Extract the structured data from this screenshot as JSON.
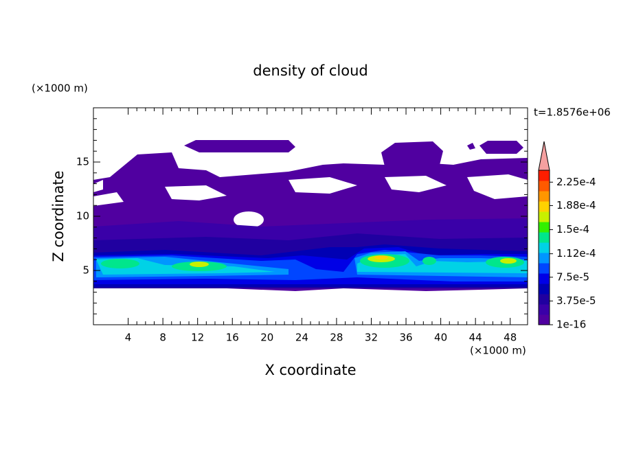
{
  "chart_data": {
    "type": "contour",
    "title": "density of cloud",
    "xlabel": "X coordinate",
    "ylabel": "Z coordinate",
    "xunit": "(×1000 m)",
    "yunit": "(×1000 m)",
    "time_label": "t=1.8576e+06",
    "xlim": [
      0,
      50
    ],
    "ylim": [
      0,
      20
    ],
    "xticks": [
      4,
      8,
      12,
      16,
      20,
      24,
      28,
      32,
      36,
      40,
      44,
      48
    ],
    "yticks": [
      5,
      10,
      15
    ],
    "colorbar": {
      "clim": [
        0,
        0.00024375
      ],
      "colors": [
        "#5000a0",
        "#3a00a8",
        "#2000a0",
        "#0000b4",
        "#0000e6",
        "#0046ff",
        "#0096ff",
        "#00d2e6",
        "#00e68c",
        "#32f000",
        "#c8f000",
        "#ffd200",
        "#ff9600",
        "#ff5a00",
        "#ff1e00"
      ],
      "extend_color": "#f5a0a0",
      "ticks": [
        {
          "value": 1e-16,
          "label": "1e-16"
        },
        {
          "value": 3.75e-05,
          "label": "3.75e-5"
        },
        {
          "value": 7.5e-05,
          "label": "7.5e-5"
        },
        {
          "value": 0.000112,
          "label": "1.12e-4"
        },
        {
          "value": 0.00015,
          "label": "1.5e-4"
        },
        {
          "value": 0.000188,
          "label": "1.88e-4"
        },
        {
          "value": 0.000225,
          "label": "2.25e-4"
        }
      ]
    }
  }
}
